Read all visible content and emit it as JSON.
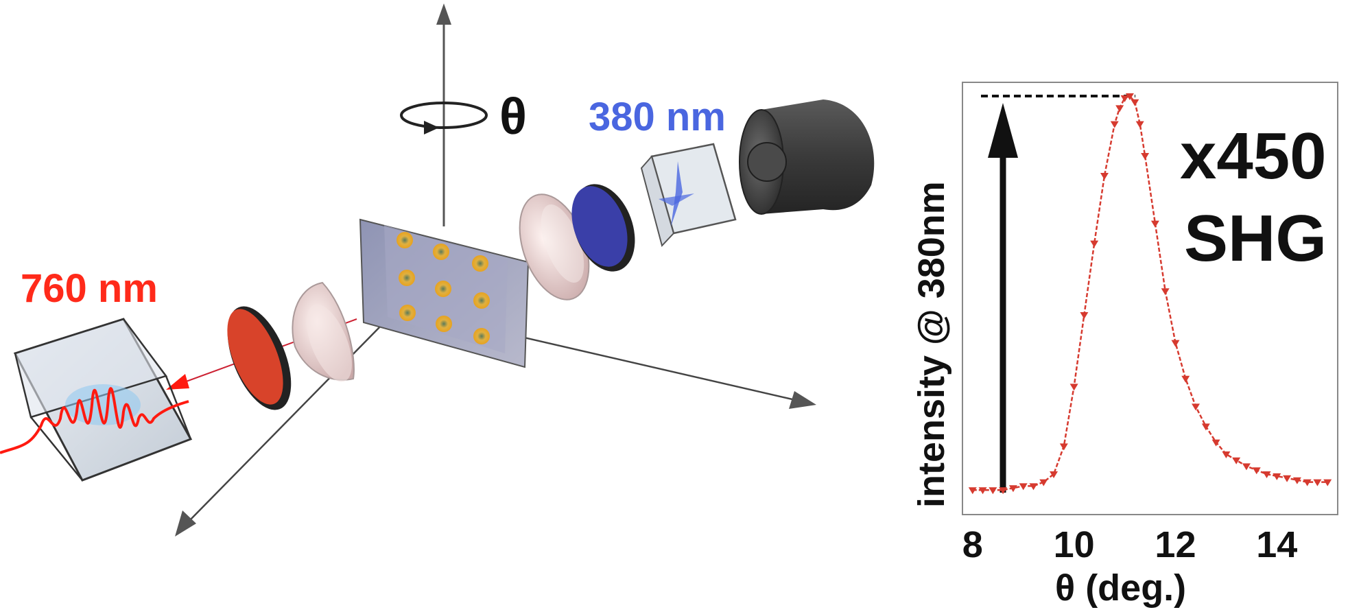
{
  "setup": {
    "pump_wavelength_label": "760 nm",
    "shg_wavelength_label": "380 nm",
    "rotation_symbol": "θ"
  },
  "annotations": {
    "enhancement": "x450",
    "process": "SHG"
  },
  "colors": {
    "pump": "#ff2a1a",
    "shg": "#4a66e0",
    "data_series": "#d63a2f",
    "filter_red": "#d8432a",
    "filter_blue": "#3a3fa8"
  },
  "chart_data": {
    "type": "line",
    "xlabel": "θ  (deg.)",
    "ylabel": "intensity @ 380nm",
    "xlim": [
      7.8,
      15.2
    ],
    "ylim": [
      0,
      1.0
    ],
    "xticks": [
      "8",
      "10",
      "12",
      "14"
    ],
    "xtick_values": [
      8,
      10,
      12,
      14
    ],
    "grid": false,
    "series": [
      {
        "x": [
          8.0,
          8.2,
          8.4,
          8.6,
          8.8,
          9.0,
          9.2,
          9.4,
          9.6,
          9.8,
          10.0,
          10.2,
          10.4,
          10.6,
          10.8,
          10.9,
          11.0,
          11.1,
          11.2,
          11.3,
          11.4,
          11.6,
          11.8,
          12.0,
          12.2,
          12.4,
          12.6,
          12.8,
          13.0,
          13.2,
          13.4,
          13.6,
          13.8,
          14.0,
          14.2,
          14.4,
          14.6,
          14.8,
          15.0
        ],
        "y": [
          0.01,
          0.01,
          0.01,
          0.01,
          0.015,
          0.02,
          0.02,
          0.03,
          0.05,
          0.12,
          0.27,
          0.45,
          0.63,
          0.8,
          0.93,
          0.97,
          0.995,
          1.0,
          0.985,
          0.93,
          0.85,
          0.68,
          0.51,
          0.38,
          0.29,
          0.22,
          0.17,
          0.13,
          0.1,
          0.085,
          0.07,
          0.06,
          0.05,
          0.045,
          0.04,
          0.035,
          0.03,
          0.03,
          0.03
        ]
      }
    ]
  }
}
